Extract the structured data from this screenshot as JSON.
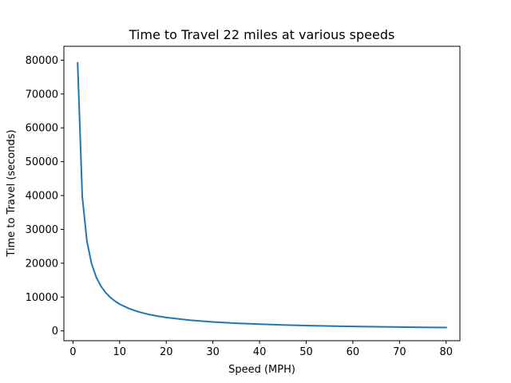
{
  "chart_data": {
    "type": "line",
    "title": "Time to Travel 22 miles at various speeds",
    "xlabel": "Speed (MPH)",
    "ylabel": "Time to Travel (seconds)",
    "xlim": [
      -1.95,
      82.95
    ],
    "ylim": [
      -2900,
      84100
    ],
    "xticks": [
      0,
      10,
      20,
      30,
      40,
      50,
      60,
      70,
      80
    ],
    "yticks": [
      0,
      10000,
      20000,
      30000,
      40000,
      50000,
      60000,
      70000,
      80000
    ],
    "grid": false,
    "series": [
      {
        "color": "#1f77b4",
        "x": [
          1,
          2,
          3,
          4,
          5,
          6,
          7,
          8,
          9,
          10,
          12,
          14,
          16,
          18,
          20,
          25,
          30,
          35,
          40,
          45,
          50,
          55,
          60,
          65,
          70,
          75,
          80
        ],
        "y": [
          79200,
          39600,
          26400,
          19800,
          15840,
          13200,
          11314,
          9900,
          8800,
          7920,
          6600,
          5657,
          4950,
          4400,
          3960,
          3168,
          2640,
          2263,
          1980,
          1760,
          1584,
          1440,
          1320,
          1218,
          1131,
          1056,
          990
        ]
      }
    ]
  }
}
